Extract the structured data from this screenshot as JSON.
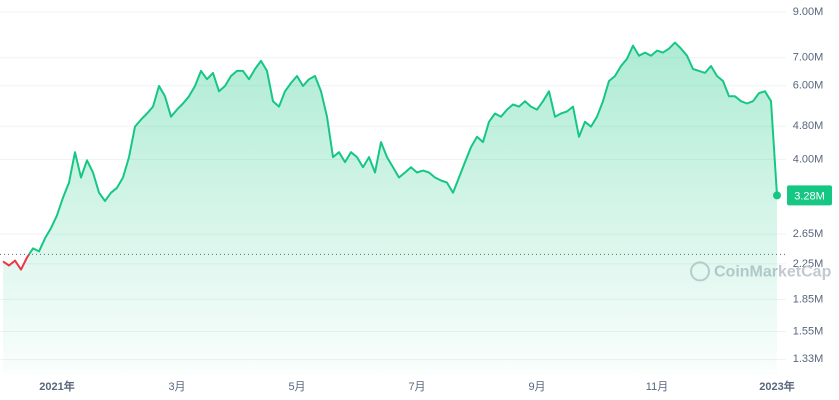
{
  "chart_data": {
    "type": "line",
    "log_scale": true,
    "grid": true,
    "color": "#16c784",
    "down_color": "#ea3943",
    "baseline": 2370000,
    "watermark": "CoinMarketCap",
    "current_price": {
      "value": 3280000,
      "label": "3.28M"
    },
    "ylim": [
      1220000,
      9620000
    ],
    "yticks": [
      {
        "value": 9000000,
        "label": "9.00M"
      },
      {
        "value": 7000000,
        "label": "7.00M"
      },
      {
        "value": 6000000,
        "label": "6.00M"
      },
      {
        "value": 4800000,
        "label": "4.80M"
      },
      {
        "value": 4000000,
        "label": "4.00M"
      },
      {
        "value": 2650000,
        "label": "2.65M"
      },
      {
        "value": 2250000,
        "label": "2.25M"
      },
      {
        "value": 1850000,
        "label": "1.85M"
      },
      {
        "value": 1550000,
        "label": "1.55M"
      },
      {
        "value": 1330000,
        "label": "1.33M"
      }
    ],
    "categories": [
      null,
      null,
      null,
      null,
      null,
      null,
      null,
      null,
      null,
      "2021年",
      null,
      null,
      null,
      null,
      null,
      null,
      null,
      null,
      null,
      null,
      null,
      null,
      null,
      null,
      null,
      null,
      null,
      null,
      null,
      "3月",
      null,
      null,
      null,
      null,
      null,
      null,
      null,
      null,
      null,
      null,
      null,
      null,
      null,
      null,
      null,
      null,
      null,
      null,
      null,
      "5月",
      null,
      null,
      null,
      null,
      null,
      null,
      null,
      null,
      null,
      null,
      null,
      null,
      null,
      null,
      null,
      null,
      null,
      null,
      null,
      "7月",
      null,
      null,
      null,
      null,
      null,
      null,
      null,
      null,
      null,
      null,
      null,
      null,
      null,
      null,
      null,
      null,
      null,
      null,
      null,
      "9月",
      null,
      null,
      null,
      null,
      null,
      null,
      null,
      null,
      null,
      null,
      null,
      null,
      null,
      null,
      null,
      null,
      null,
      null,
      null,
      "11月",
      null,
      null,
      null,
      null,
      null,
      null,
      null,
      null,
      null,
      null,
      null,
      null,
      null,
      null,
      null,
      null,
      null,
      null,
      null,
      "2023年"
    ],
    "values": [
      2280000,
      2230000,
      2290000,
      2180000,
      2330000,
      2450000,
      2410000,
      2590000,
      2740000,
      2940000,
      3240000,
      3520000,
      4160000,
      3620000,
      3980000,
      3720000,
      3330000,
      3180000,
      3330000,
      3420000,
      3620000,
      4050000,
      4790000,
      4980000,
      5150000,
      5350000,
      5990000,
      5660000,
      5060000,
      5260000,
      5440000,
      5660000,
      5990000,
      6510000,
      6220000,
      6440000,
      5820000,
      5990000,
      6330000,
      6510000,
      6510000,
      6220000,
      6580000,
      6880000,
      6510000,
      5510000,
      5350000,
      5820000,
      6090000,
      6330000,
      5990000,
      6220000,
      6330000,
      5820000,
      5060000,
      4050000,
      4160000,
      3940000,
      4160000,
      4050000,
      3830000,
      4050000,
      3720000,
      4400000,
      4050000,
      3830000,
      3620000,
      3720000,
      3830000,
      3720000,
      3760000,
      3720000,
      3620000,
      3560000,
      3520000,
      3330000,
      3620000,
      3940000,
      4280000,
      4530000,
      4400000,
      4920000,
      5150000,
      5060000,
      5260000,
      5410000,
      5350000,
      5510000,
      5350000,
      5260000,
      5510000,
      5820000,
      5060000,
      5150000,
      5210000,
      5350000,
      4530000,
      4920000,
      4790000,
      5060000,
      5510000,
      6160000,
      6330000,
      6690000,
      6960000,
      7480000,
      7080000,
      7200000,
      7080000,
      7280000,
      7200000,
      7360000,
      7610000,
      7360000,
      7080000,
      6580000,
      6510000,
      6440000,
      6690000,
      6330000,
      6160000,
      5660000,
      5660000,
      5510000,
      5440000,
      5510000,
      5760000,
      5820000,
      5510000,
      3280000
    ]
  }
}
